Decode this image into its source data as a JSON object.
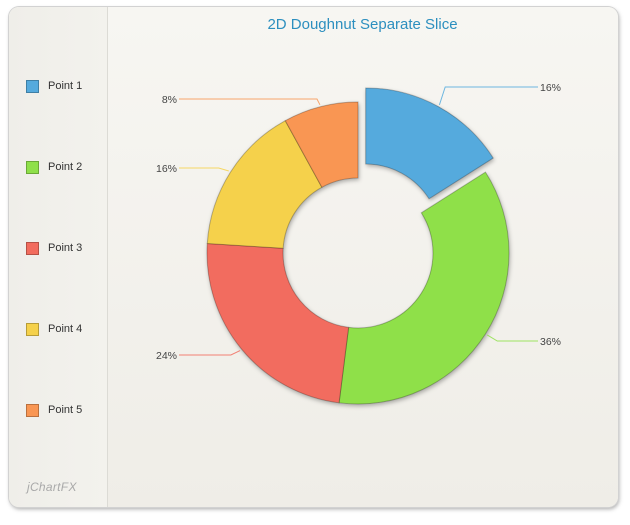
{
  "chart_data": {
    "type": "pie",
    "variant": "doughnut",
    "title": "2D Doughnut Separate Slice",
    "categories": [
      "Point 1",
      "Point 2",
      "Point 3",
      "Point 4",
      "Point 5"
    ],
    "values": [
      16,
      36,
      24,
      16,
      8
    ],
    "labels": [
      "16%",
      "36%",
      "24%",
      "16%",
      "8%"
    ],
    "colors": [
      "#55aadd",
      "#8fe04a",
      "#f26c5e",
      "#f5d14b",
      "#f99653"
    ],
    "exploded_slice": "Point 1",
    "legend": "left"
  },
  "branding": "jChartFX"
}
